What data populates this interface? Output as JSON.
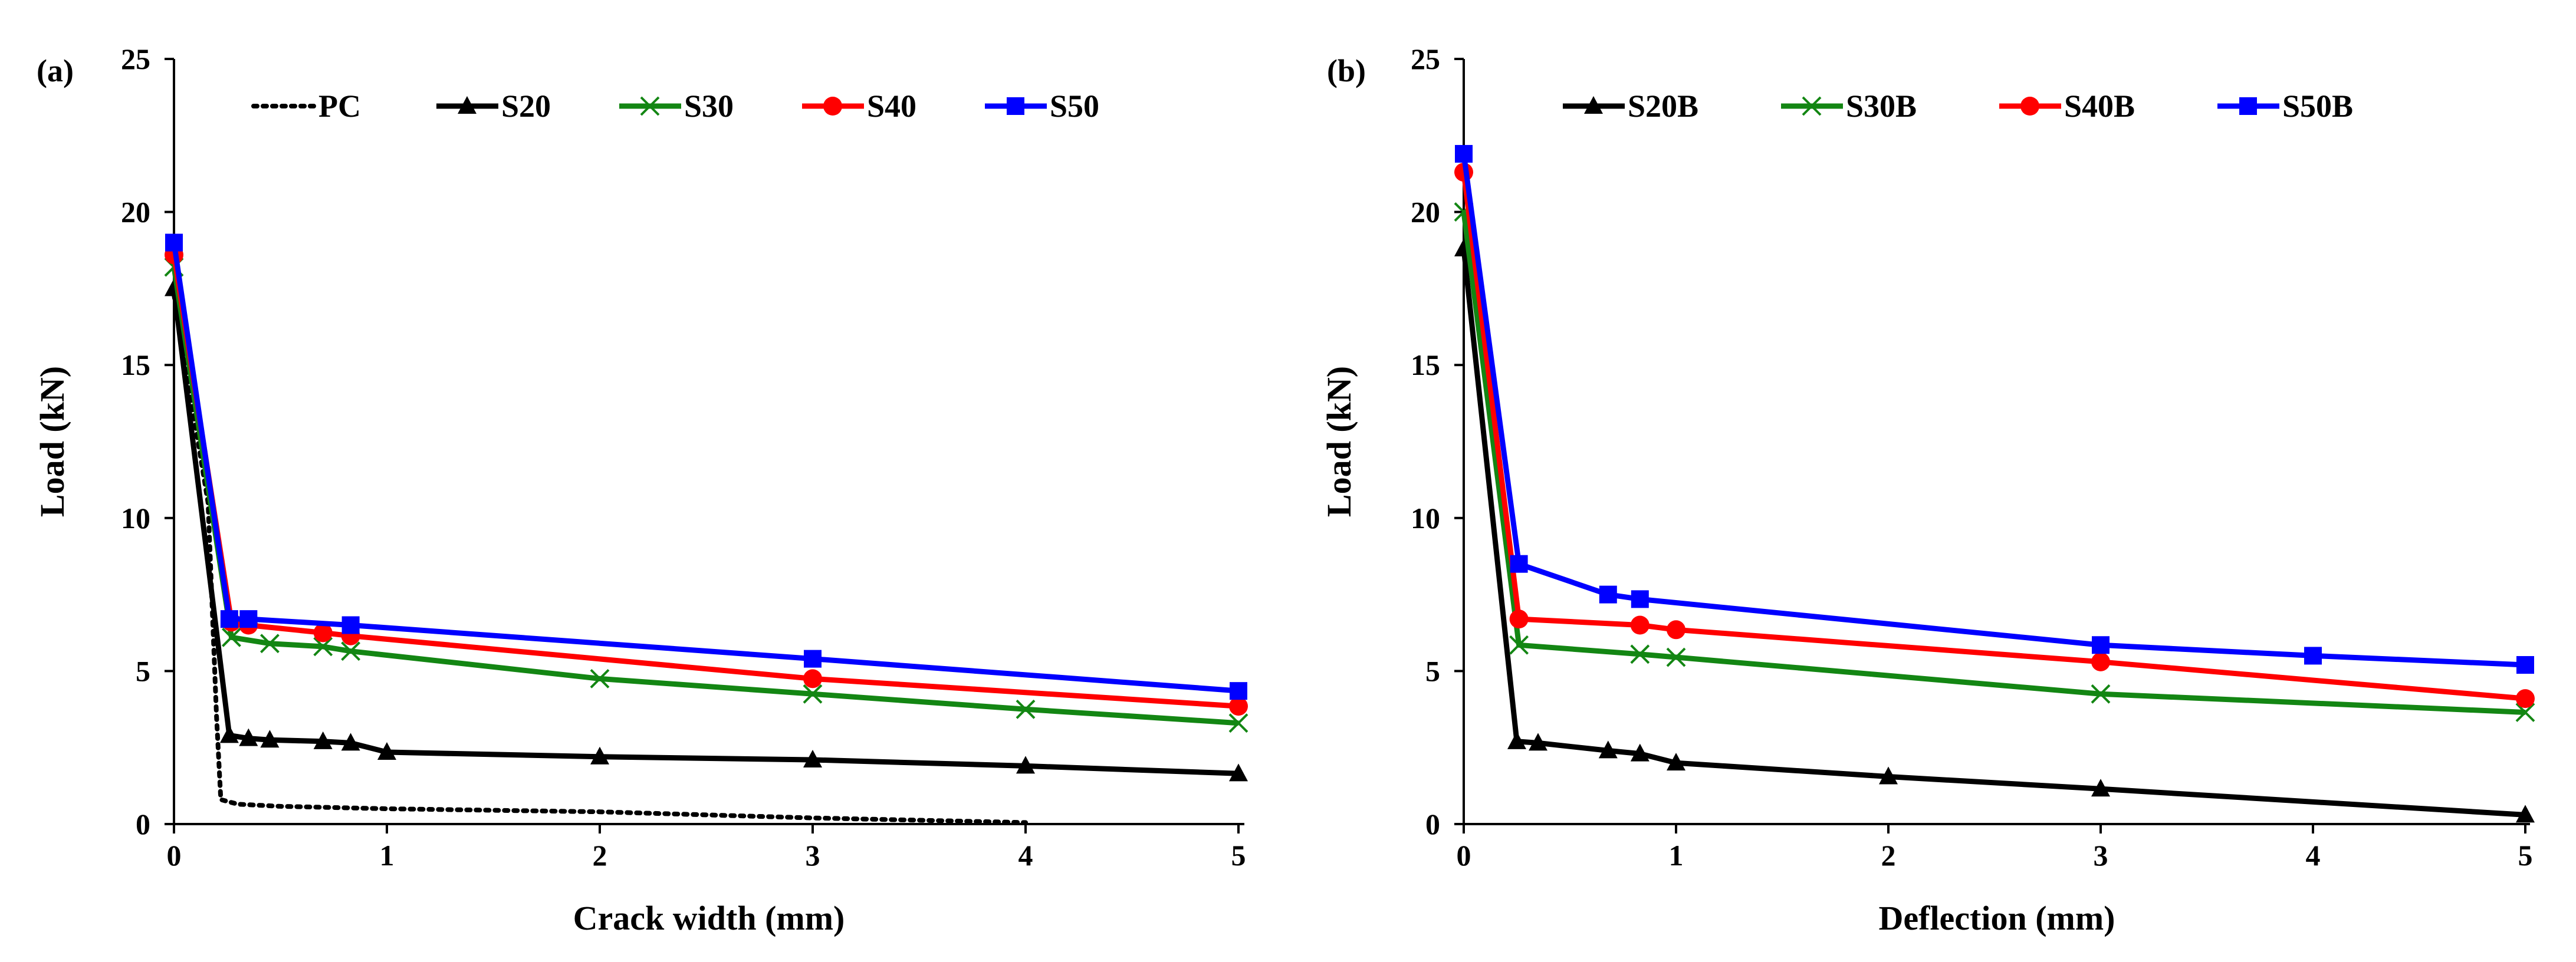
{
  "chart_data": [
    {
      "type": "line",
      "panel_label": "(a)",
      "xlabel": "Crack width (mm)",
      "ylabel": "Load (kN)",
      "xlim": [
        0,
        5
      ],
      "ylim": [
        0,
        25
      ],
      "xticks": [
        0,
        1,
        2,
        3,
        4,
        5
      ],
      "yticks": [
        0,
        5,
        10,
        15,
        20,
        25
      ],
      "grid": false,
      "legend_position": "top",
      "series": [
        {
          "name": "PC",
          "color": "#000000",
          "style": "dotted",
          "marker": "none",
          "points": [
            [
              0,
              17.3
            ],
            [
              0.16,
              10.5
            ],
            [
              0.2,
              3.5
            ],
            [
              0.22,
              0.8
            ],
            [
              0.3,
              0.65
            ],
            [
              0.5,
              0.58
            ],
            [
              1.0,
              0.5
            ],
            [
              2.0,
              0.4
            ],
            [
              3.0,
              0.2
            ],
            [
              4.0,
              0.05
            ]
          ]
        },
        {
          "name": "S20",
          "color": "#000000",
          "style": "solid",
          "marker": "triangle",
          "points": [
            [
              0,
              17.5
            ],
            [
              0.26,
              2.9
            ],
            [
              0.35,
              2.8
            ],
            [
              0.45,
              2.75
            ],
            [
              0.7,
              2.7
            ],
            [
              0.83,
              2.65
            ],
            [
              1.0,
              2.35
            ],
            [
              2.0,
              2.2
            ],
            [
              3.0,
              2.1
            ],
            [
              4.0,
              1.9
            ],
            [
              5.0,
              1.65
            ]
          ]
        },
        {
          "name": "S30",
          "color": "#138613",
          "style": "solid",
          "marker": "x",
          "points": [
            [
              0,
              18.2
            ],
            [
              0.27,
              6.1
            ],
            [
              0.45,
              5.9
            ],
            [
              0.7,
              5.8
            ],
            [
              0.83,
              5.65
            ],
            [
              2.0,
              4.75
            ],
            [
              3.0,
              4.25
            ],
            [
              4.0,
              3.75
            ],
            [
              5.0,
              3.3
            ]
          ]
        },
        {
          "name": "S40",
          "color": "#ff0000",
          "style": "solid",
          "marker": "circle",
          "points": [
            [
              0,
              18.6
            ],
            [
              0.27,
              6.6
            ],
            [
              0.35,
              6.5
            ],
            [
              0.7,
              6.25
            ],
            [
              0.83,
              6.15
            ],
            [
              3.0,
              4.75
            ],
            [
              5.0,
              3.85
            ]
          ]
        },
        {
          "name": "S50",
          "color": "#0000ff",
          "style": "solid",
          "marker": "square",
          "points": [
            [
              0,
              19.0
            ],
            [
              0.26,
              6.7
            ],
            [
              0.35,
              6.7
            ],
            [
              0.83,
              6.5
            ],
            [
              3.0,
              5.4
            ],
            [
              5.0,
              4.35
            ]
          ]
        }
      ]
    },
    {
      "type": "line",
      "panel_label": "(b)",
      "xlabel": "Deflection (mm)",
      "ylabel": "Load (kN)",
      "xlim": [
        0,
        5
      ],
      "ylim": [
        0,
        25
      ],
      "xticks": [
        0,
        1,
        2,
        3,
        4,
        5
      ],
      "yticks": [
        0,
        5,
        10,
        15,
        20,
        25
      ],
      "grid": false,
      "legend_position": "top",
      "series": [
        {
          "name": "S20B",
          "color": "#000000",
          "style": "solid",
          "marker": "triangle",
          "points": [
            [
              0,
              18.8
            ],
            [
              0.25,
              2.7
            ],
            [
              0.35,
              2.65
            ],
            [
              0.68,
              2.4
            ],
            [
              0.83,
              2.3
            ],
            [
              1.0,
              2.0
            ],
            [
              2.0,
              1.55
            ],
            [
              3.0,
              1.15
            ],
            [
              5.0,
              0.3
            ]
          ]
        },
        {
          "name": "S30B",
          "color": "#138613",
          "style": "solid",
          "marker": "x",
          "points": [
            [
              0,
              20.0
            ],
            [
              0.26,
              5.85
            ],
            [
              0.83,
              5.55
            ],
            [
              1.0,
              5.45
            ],
            [
              3.0,
              4.25
            ],
            [
              5.0,
              3.65
            ]
          ]
        },
        {
          "name": "S40B",
          "color": "#ff0000",
          "style": "solid",
          "marker": "circle",
          "points": [
            [
              0,
              21.3
            ],
            [
              0.26,
              6.7
            ],
            [
              0.83,
              6.5
            ],
            [
              1.0,
              6.35
            ],
            [
              3.0,
              5.3
            ],
            [
              5.0,
              4.1
            ]
          ]
        },
        {
          "name": "S50B",
          "color": "#0000ff",
          "style": "solid",
          "marker": "square",
          "points": [
            [
              0,
              21.9
            ],
            [
              0.26,
              8.5
            ],
            [
              0.68,
              7.5
            ],
            [
              0.83,
              7.35
            ],
            [
              3.0,
              5.85
            ],
            [
              4.0,
              5.5
            ],
            [
              5.0,
              5.2
            ]
          ]
        }
      ]
    }
  ]
}
